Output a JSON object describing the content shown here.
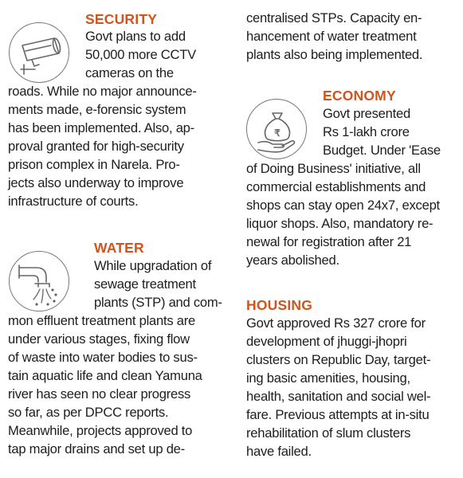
{
  "sections": {
    "security": {
      "title": "SECURITY",
      "icon": "cctv-camera-icon",
      "lines": [
        "Govt plans to add",
        "50,000 more CCTV",
        "cameras on the",
        "roads. While no major announce-",
        "ments made, e-forensic system",
        "has been implemented. Also, ap-",
        "proval granted for high-security",
        "prison complex in Narela. Pro-",
        "jects also underway to improve",
        "infrastructure of courts."
      ]
    },
    "water": {
      "title": "WATER",
      "icon": "drain-pipe-icon",
      "lines": [
        "While upgradation of",
        "sewage treatment",
        "plants (STP) and com-",
        "mon effluent treatment plants are",
        "under various stages, fixing flow",
        "of waste into water bodies to sus-",
        "tain aquatic life and clean Yamuna",
        "river has seen no clear progress",
        "so far, as per DPCC reports.",
        "Meanwhile, projects approved to",
        "tap major drains and set up de-"
      ]
    },
    "water_continued": {
      "lines": [
        "centralised STPs. Capacity en-",
        "hancement of water treatment",
        "plants also being implemented."
      ]
    },
    "economy": {
      "title": "ECONOMY",
      "icon": "money-bag-hand-icon",
      "lines": [
        "Govt presented",
        "Rs 1-lakh crore",
        "Budget. Under 'Ease",
        "of Doing Business' initiative, all",
        "commercial establishments and",
        "shops can stay open 24x7, except",
        "liquor shops. Also, mandatory re-",
        "newal for registration after 21",
        "years abolished."
      ]
    },
    "housing": {
      "title": "HOUSING",
      "lines": [
        "Govt approved Rs 327 crore for",
        "development of jhuggi-jhopri",
        "clusters on Republic Day, target-",
        "ing basic amenities, housing,",
        "health, sanitation and social wel-",
        "fare. Previous attempts at in-situ",
        "rehabilitation of slum clusters",
        "have failed."
      ]
    }
  },
  "colors": {
    "heading": "#d0541e",
    "text": "#1d1d1d",
    "icon_stroke": "#777777"
  }
}
